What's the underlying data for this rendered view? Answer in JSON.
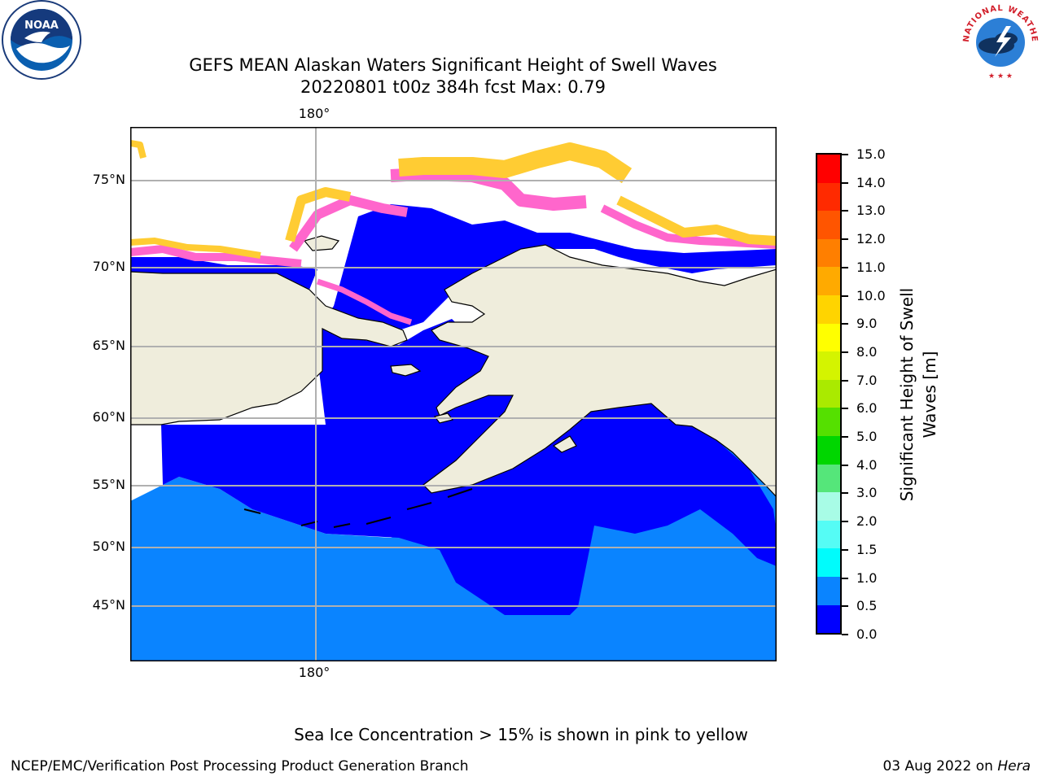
{
  "title": {
    "line1": "GEFS MEAN Alaskan Waters Significant Height of Swell Waves",
    "line2": "20220801 t00z 384h fcst   Max: 0.79"
  },
  "map": {
    "lon_label_top": "180°",
    "lon_label_bottom": "180°",
    "lat_labels": [
      "75°N",
      "70°N",
      "65°N",
      "60°N",
      "55°N",
      "50°N",
      "45°N"
    ],
    "colors": {
      "land": "#efeddc",
      "ocean_low": "#0000ff",
      "ocean_mid": "#0a84ff",
      "coast": "#000000",
      "grid": "#b0b0b0"
    }
  },
  "colorbar": {
    "title_line1": "Significant Height of Swell",
    "title_line2": "Waves [m]",
    "ticks": [
      "15.0",
      "14.0",
      "13.0",
      "12.0",
      "11.0",
      "10.0",
      "9.0",
      "8.0",
      "7.0",
      "6.0",
      "5.0",
      "4.0",
      "3.0",
      "2.0",
      "1.5",
      "1.0",
      "0.5",
      "0.0"
    ],
    "colors": [
      "#ff0000",
      "#ff2a00",
      "#ff5500",
      "#ff7f00",
      "#ffaa00",
      "#ffd400",
      "#ffff00",
      "#d4f400",
      "#aaea00",
      "#55e000",
      "#00d600",
      "#55e67a",
      "#a8fce6",
      "#55fcf5",
      "#00fcfc",
      "#0a84ff",
      "#0000ff"
    ]
  },
  "footer": {
    "note": "Sea Ice Concentration > 15% is shown in pink to yellow",
    "credit_left": "NCEP/EMC/Verification Post Processing Product Generation Branch",
    "credit_right_date": "03 Aug 2022 on ",
    "credit_right_host": "Hera"
  },
  "logos": {
    "noaa_text": "NOAA",
    "nws_ring_text": "NATIONAL WEATHER SERVICE"
  }
}
